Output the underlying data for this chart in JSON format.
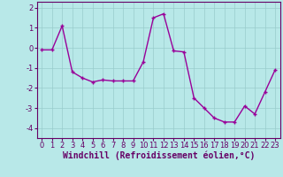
{
  "x": [
    0,
    1,
    2,
    3,
    4,
    5,
    6,
    7,
    8,
    9,
    10,
    11,
    12,
    13,
    14,
    15,
    16,
    17,
    18,
    19,
    20,
    21,
    22,
    23
  ],
  "y": [
    -0.1,
    -0.1,
    1.1,
    -1.2,
    -1.5,
    -1.7,
    -1.6,
    -1.65,
    -1.65,
    -1.65,
    -0.7,
    1.5,
    1.7,
    -0.15,
    -0.2,
    -2.5,
    -3.0,
    -3.5,
    -3.7,
    -3.7,
    -2.9,
    -3.3,
    -2.2,
    -1.1
  ],
  "line_color": "#990099",
  "marker": "+",
  "bg_color": "#b8e8e8",
  "grid_color": "#99cccc",
  "xlabel": "Windchill (Refroidissement éolien,°C)",
  "xlim": [
    -0.5,
    23.5
  ],
  "ylim": [
    -4.5,
    2.3
  ],
  "yticks": [
    -4,
    -3,
    -2,
    -1,
    0,
    1,
    2
  ],
  "xticks": [
    0,
    1,
    2,
    3,
    4,
    5,
    6,
    7,
    8,
    9,
    10,
    11,
    12,
    13,
    14,
    15,
    16,
    17,
    18,
    19,
    20,
    21,
    22,
    23
  ],
  "xlabel_fontsize": 7,
  "tick_fontsize": 6,
  "line_width": 1.0,
  "marker_size": 3.5,
  "spine_color": "#660066",
  "text_color": "#660066"
}
